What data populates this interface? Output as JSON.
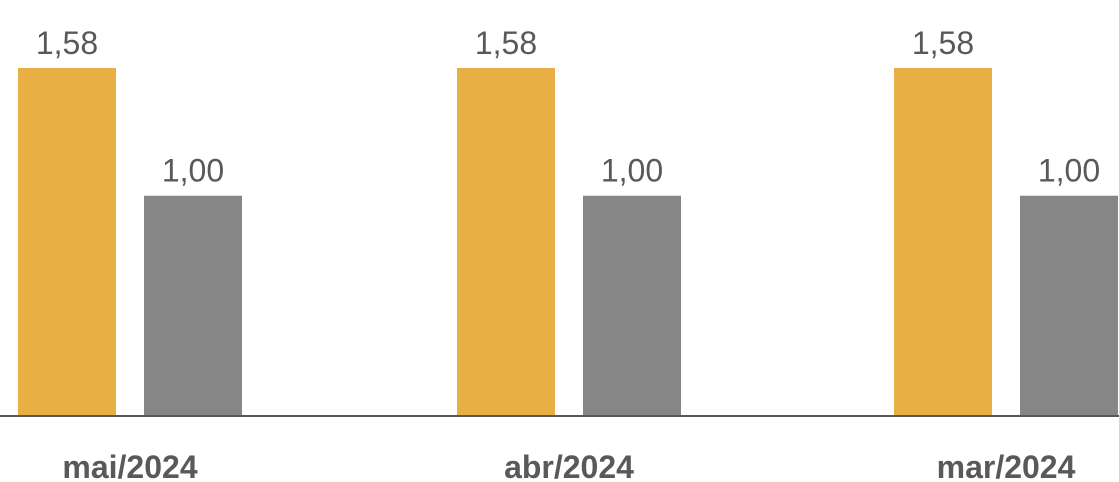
{
  "chart_data": {
    "type": "bar",
    "categories": [
      "mai/2024",
      "abr/2024",
      "mar/2024"
    ],
    "series": [
      {
        "values": [
          1.58,
          1.58,
          1.58
        ],
        "labels": [
          "1,58",
          "1,58",
          "1,58"
        ],
        "color": "#E8AF45"
      },
      {
        "values": [
          1.0,
          1.0,
          1.0
        ],
        "labels": [
          "1,00",
          "1,00",
          "1,00"
        ],
        "color": "#868686"
      }
    ],
    "title": "",
    "xlabel": "",
    "ylabel": "",
    "ylim": [
      0,
      1.6
    ],
    "grid": false,
    "legend": "none"
  }
}
